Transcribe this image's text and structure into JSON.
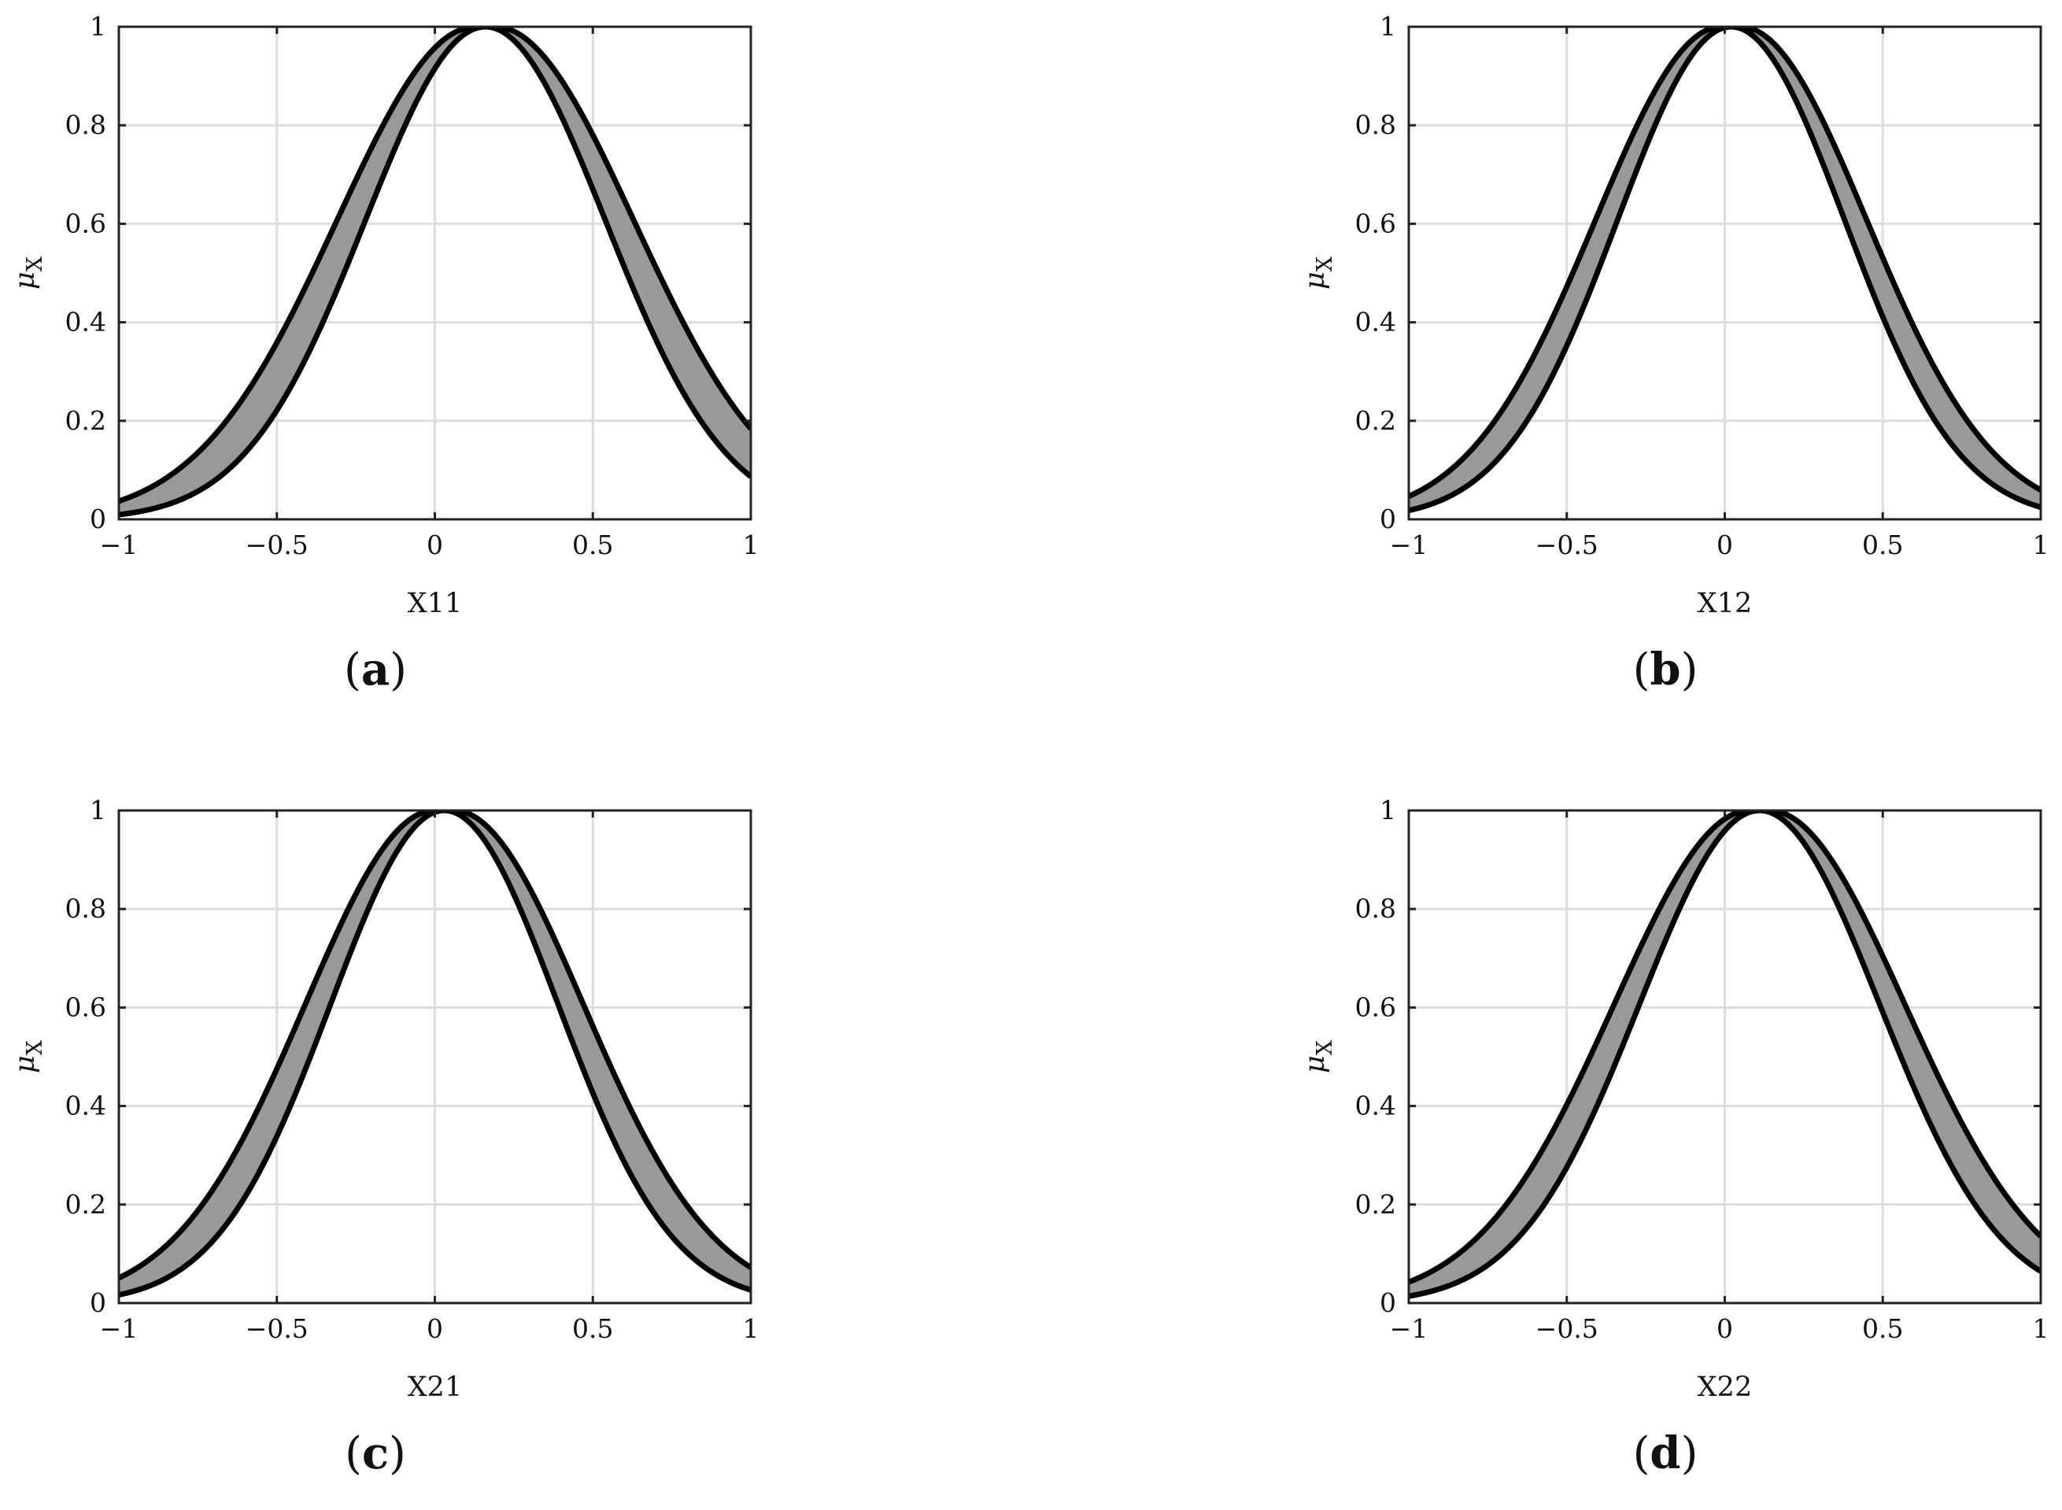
{
  "figure": {
    "colors": {
      "band_fill": "#999999",
      "curve_stroke": "#000000",
      "grid": "#dddddd",
      "axes": "#222222",
      "background": "#ffffff"
    },
    "panel_labels": [
      "(a)",
      "(b)",
      "(c)",
      "(d)"
    ]
  },
  "chart_data": [
    {
      "id": "a",
      "type": "area",
      "panel_label": "(a)",
      "xlabel": "X11",
      "ylabel": "μX",
      "ylabel_main": "μ",
      "ylabel_sub": "X",
      "xlim": [
        -1,
        1
      ],
      "ylim": [
        0,
        1
      ],
      "xticks": [
        -1,
        -0.5,
        0,
        0.5,
        1
      ],
      "xtick_labels": [
        "−1",
        "−0.5",
        "0",
        "0.5",
        "1"
      ],
      "yticks": [
        0,
        0.2,
        0.4,
        0.6,
        0.8,
        1
      ],
      "ytick_labels": [
        "0",
        "0.2",
        "0.4",
        "0.6",
        "0.8",
        "1"
      ],
      "grid": true,
      "series": [
        {
          "role": "upper_bound",
          "curve": "gaussian_flat_top",
          "center_left": 0.13,
          "center_right": 0.19,
          "sigma": 0.44
        },
        {
          "role": "lower_bound",
          "curve": "gaussian",
          "center": 0.16,
          "sigma": 0.38
        }
      ]
    },
    {
      "id": "b",
      "type": "area",
      "panel_label": "(b)",
      "xlabel": "X12",
      "ylabel": "μX",
      "ylabel_main": "μ",
      "ylabel_sub": "X",
      "xlim": [
        -1,
        1
      ],
      "ylim": [
        0,
        1
      ],
      "xticks": [
        -1,
        -0.5,
        0,
        0.5,
        1
      ],
      "xtick_labels": [
        "−1",
        "−0.5",
        "0",
        "0.5",
        "1"
      ],
      "yticks": [
        0,
        0.2,
        0.4,
        0.6,
        0.8,
        1
      ],
      "ytick_labels": [
        "0",
        "0.2",
        "0.4",
        "0.6",
        "0.8",
        "1"
      ],
      "grid": true,
      "series": [
        {
          "role": "upper_bound",
          "curve": "gaussian_flat_top",
          "center_left": -0.01,
          "center_right": 0.05,
          "sigma": 0.4
        },
        {
          "role": "lower_bound",
          "curve": "gaussian",
          "center": 0.02,
          "sigma": 0.36
        }
      ]
    },
    {
      "id": "c",
      "type": "area",
      "panel_label": "(c)",
      "xlabel": "X21",
      "ylabel": "μX",
      "ylabel_main": "μ",
      "ylabel_sub": "X",
      "xlim": [
        -1,
        1
      ],
      "ylim": [
        0,
        1
      ],
      "xticks": [
        -1,
        -0.5,
        0,
        0.5,
        1
      ],
      "xtick_labels": [
        "−1",
        "−0.5",
        "0",
        "0.5",
        "1"
      ],
      "yticks": [
        0,
        0.2,
        0.4,
        0.6,
        0.8,
        1
      ],
      "ytick_labels": [
        "0",
        "0.2",
        "0.4",
        "0.6",
        "0.8",
        "1"
      ],
      "grid": true,
      "series": [
        {
          "role": "upper_bound",
          "curve": "gaussian_flat_top",
          "center_left": 0.0,
          "center_right": 0.06,
          "sigma": 0.41
        },
        {
          "role": "lower_bound",
          "curve": "gaussian",
          "center": 0.03,
          "sigma": 0.36
        }
      ]
    },
    {
      "id": "d",
      "type": "area",
      "panel_label": "(d)",
      "xlabel": "X22",
      "ylabel": "μX",
      "ylabel_main": "μ",
      "ylabel_sub": "X",
      "xlim": [
        -1,
        1
      ],
      "ylim": [
        0,
        1
      ],
      "xticks": [
        -1,
        -0.5,
        0,
        0.5,
        1
      ],
      "xtick_labels": [
        "−1",
        "−0.5",
        "0",
        "0.5",
        "1"
      ],
      "yticks": [
        0,
        0.2,
        0.4,
        0.6,
        0.8,
        1
      ],
      "ytick_labels": [
        "0",
        "0.2",
        "0.4",
        "0.6",
        "0.8",
        "1"
      ],
      "grid": true,
      "series": [
        {
          "role": "upper_bound",
          "curve": "gaussian_flat_top",
          "center_left": 0.08,
          "center_right": 0.14,
          "sigma": 0.43
        },
        {
          "role": "lower_bound",
          "curve": "gaussian",
          "center": 0.11,
          "sigma": 0.38
        }
      ]
    }
  ]
}
